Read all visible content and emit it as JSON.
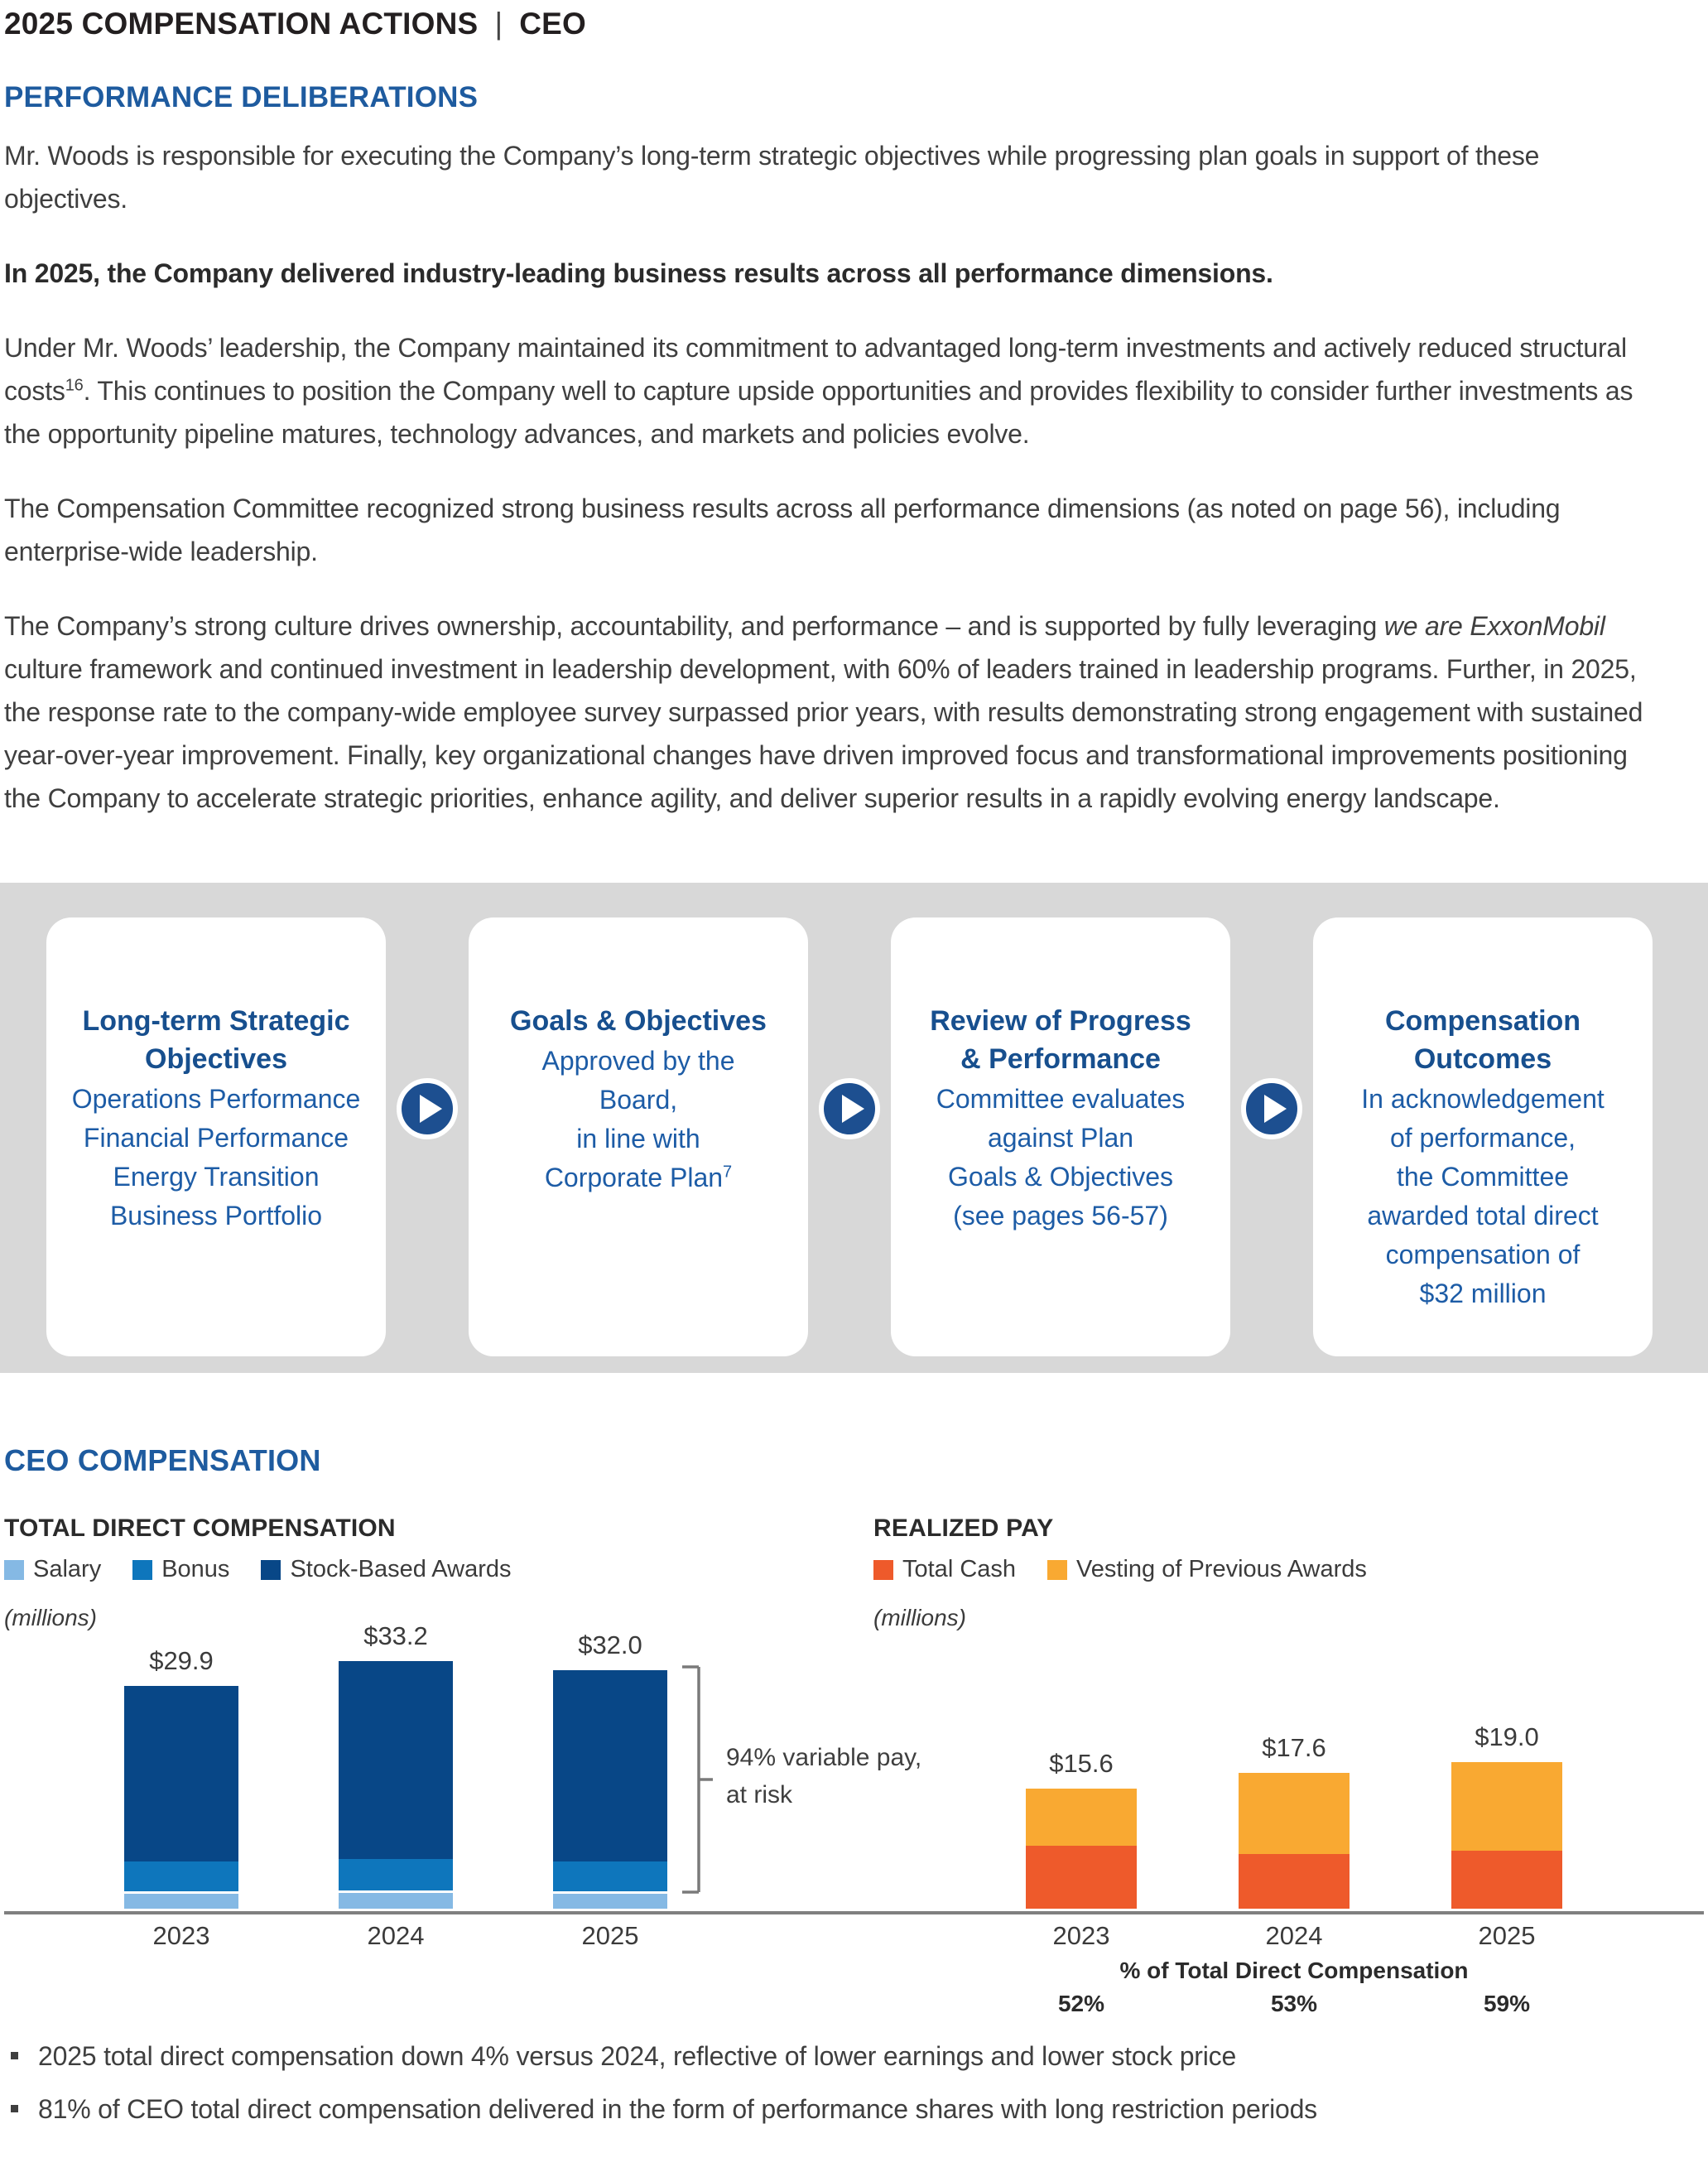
{
  "page": {
    "title_left": "2025 COMPENSATION ACTIONS",
    "title_sep": "|",
    "title_right": "CEO"
  },
  "colors": {
    "heading_blue": "#1e5b9f",
    "card_title_blue": "#174f8e",
    "card_body_blue": "#1d5ca6",
    "arrow_blue": "#1d4f90",
    "panel_gray": "#d8d8d8",
    "axis_gray": "#7f7f7f",
    "text_dark": "#3f3f3f",
    "title_black": "#231f20",
    "salary_blue": "#85b9e4",
    "bonus_blue": "#0e76bc",
    "stock_navy": "#084787",
    "cash_orange": "#ee5a2b",
    "vesting_yellow": "#f9a932"
  },
  "performance": {
    "heading": "PERFORMANCE DELIBERATIONS",
    "p1": "Mr. Woods is responsible for executing the Company’s long-term strategic objectives while progressing plan goals in support of these objectives.",
    "p2": "In 2025, the Company delivered industry-leading business results across all performance dimensions.",
    "p3_a": "Under Mr. Woods’ leadership, the Company maintained its commitment to advantaged long-term investments and actively reduced structural costs",
    "p3_sup": "16",
    "p3_b": ". This continues to position the Company well to capture upside opportunities and provides flexibility to consider further investments as the opportunity pipeline matures, technology advances, and markets and policies evolve.",
    "p4": "The Compensation Committee recognized strong business results across all performance dimensions (as noted on page 56), including enterprise-wide leadership.",
    "p5_a": "The Company’s strong culture drives ownership, accountability, and performance – and is supported by fully leveraging ",
    "p5_italic": "we are ExxonMobil",
    "p5_b": " culture framework and continued investment in leadership development, with 60% of leaders trained in leadership programs. Further, in 2025, the response rate to the company-wide employee survey surpassed prior years, with results demonstrating strong engagement with sustained year-over-year improvement. Finally, key organizational changes have driven improved focus and transformational improvements positioning the Company to accelerate strategic priorities, enhance agility, and deliver superior results in a rapidly evolving energy landscape."
  },
  "process_flow": {
    "cards": [
      {
        "title": "Long-term Strategic\nObjectives",
        "body": "Operations Performance\nFinancial Performance\nEnergy Transition\nBusiness Portfolio"
      },
      {
        "title": "Goals & Objectives",
        "body": "Approved by the\nBoard,\nin line with\nCorporate Plan",
        "body_sup": "7"
      },
      {
        "title": "Review of Progress\n& Performance",
        "body": "Committee evaluates\nagainst Plan\nGoals & Objectives\n(see pages 56-57)"
      },
      {
        "title": "Compensation\nOutcomes",
        "body": "In acknowledgement\nof performance,\nthe Committee\nawarded total direct\ncompensation of\n$32 million"
      }
    ]
  },
  "ceo_section": {
    "heading": "CEO COMPENSATION"
  },
  "chart_data": [
    {
      "type": "bar",
      "stacked": true,
      "title": "TOTAL DIRECT COMPENSATION",
      "units": "(millions)",
      "categories": [
        "2023",
        "2024",
        "2025"
      ],
      "series": [
        {
          "name": "Salary",
          "color": "#85b9e4",
          "values": [
            2.0,
            2.1,
            2.0
          ]
        },
        {
          "name": "Bonus",
          "color": "#0e76bc",
          "values": [
            4.1,
            4.3,
            4.1
          ]
        },
        {
          "name": "Stock-Based Awards",
          "color": "#084787",
          "values": [
            23.8,
            26.8,
            25.9
          ]
        }
      ],
      "totals": [
        29.9,
        33.2,
        32.0
      ],
      "total_labels": [
        "$29.9",
        "$33.2",
        "$32.0"
      ],
      "annotation": "94% variable pay, at risk",
      "legend_position": "top",
      "grid": false
    },
    {
      "type": "bar",
      "stacked": true,
      "title": "REALIZED PAY",
      "units": "(millions)",
      "categories": [
        "2023",
        "2024",
        "2025"
      ],
      "series": [
        {
          "name": "Total Cash",
          "color": "#ee5a2b",
          "values": [
            8.2,
            7.1,
            7.5
          ]
        },
        {
          "name": "Vesting of Previous Awards",
          "color": "#f9a932",
          "values": [
            7.4,
            10.5,
            11.5
          ]
        }
      ],
      "totals": [
        15.6,
        17.6,
        19.0
      ],
      "total_labels": [
        "$15.6",
        "$17.6",
        "$19.0"
      ],
      "footer_label": "% of Total Direct Compensation",
      "footer_values": [
        "52%",
        "53%",
        "59%"
      ],
      "legend_position": "top",
      "grid": false
    }
  ],
  "bullets": [
    "2025 total direct compensation down 4% versus 2024, reflective of lower earnings and lower stock price",
    "81% of CEO total direct compensation delivered in the form of performance shares with long restriction periods"
  ]
}
